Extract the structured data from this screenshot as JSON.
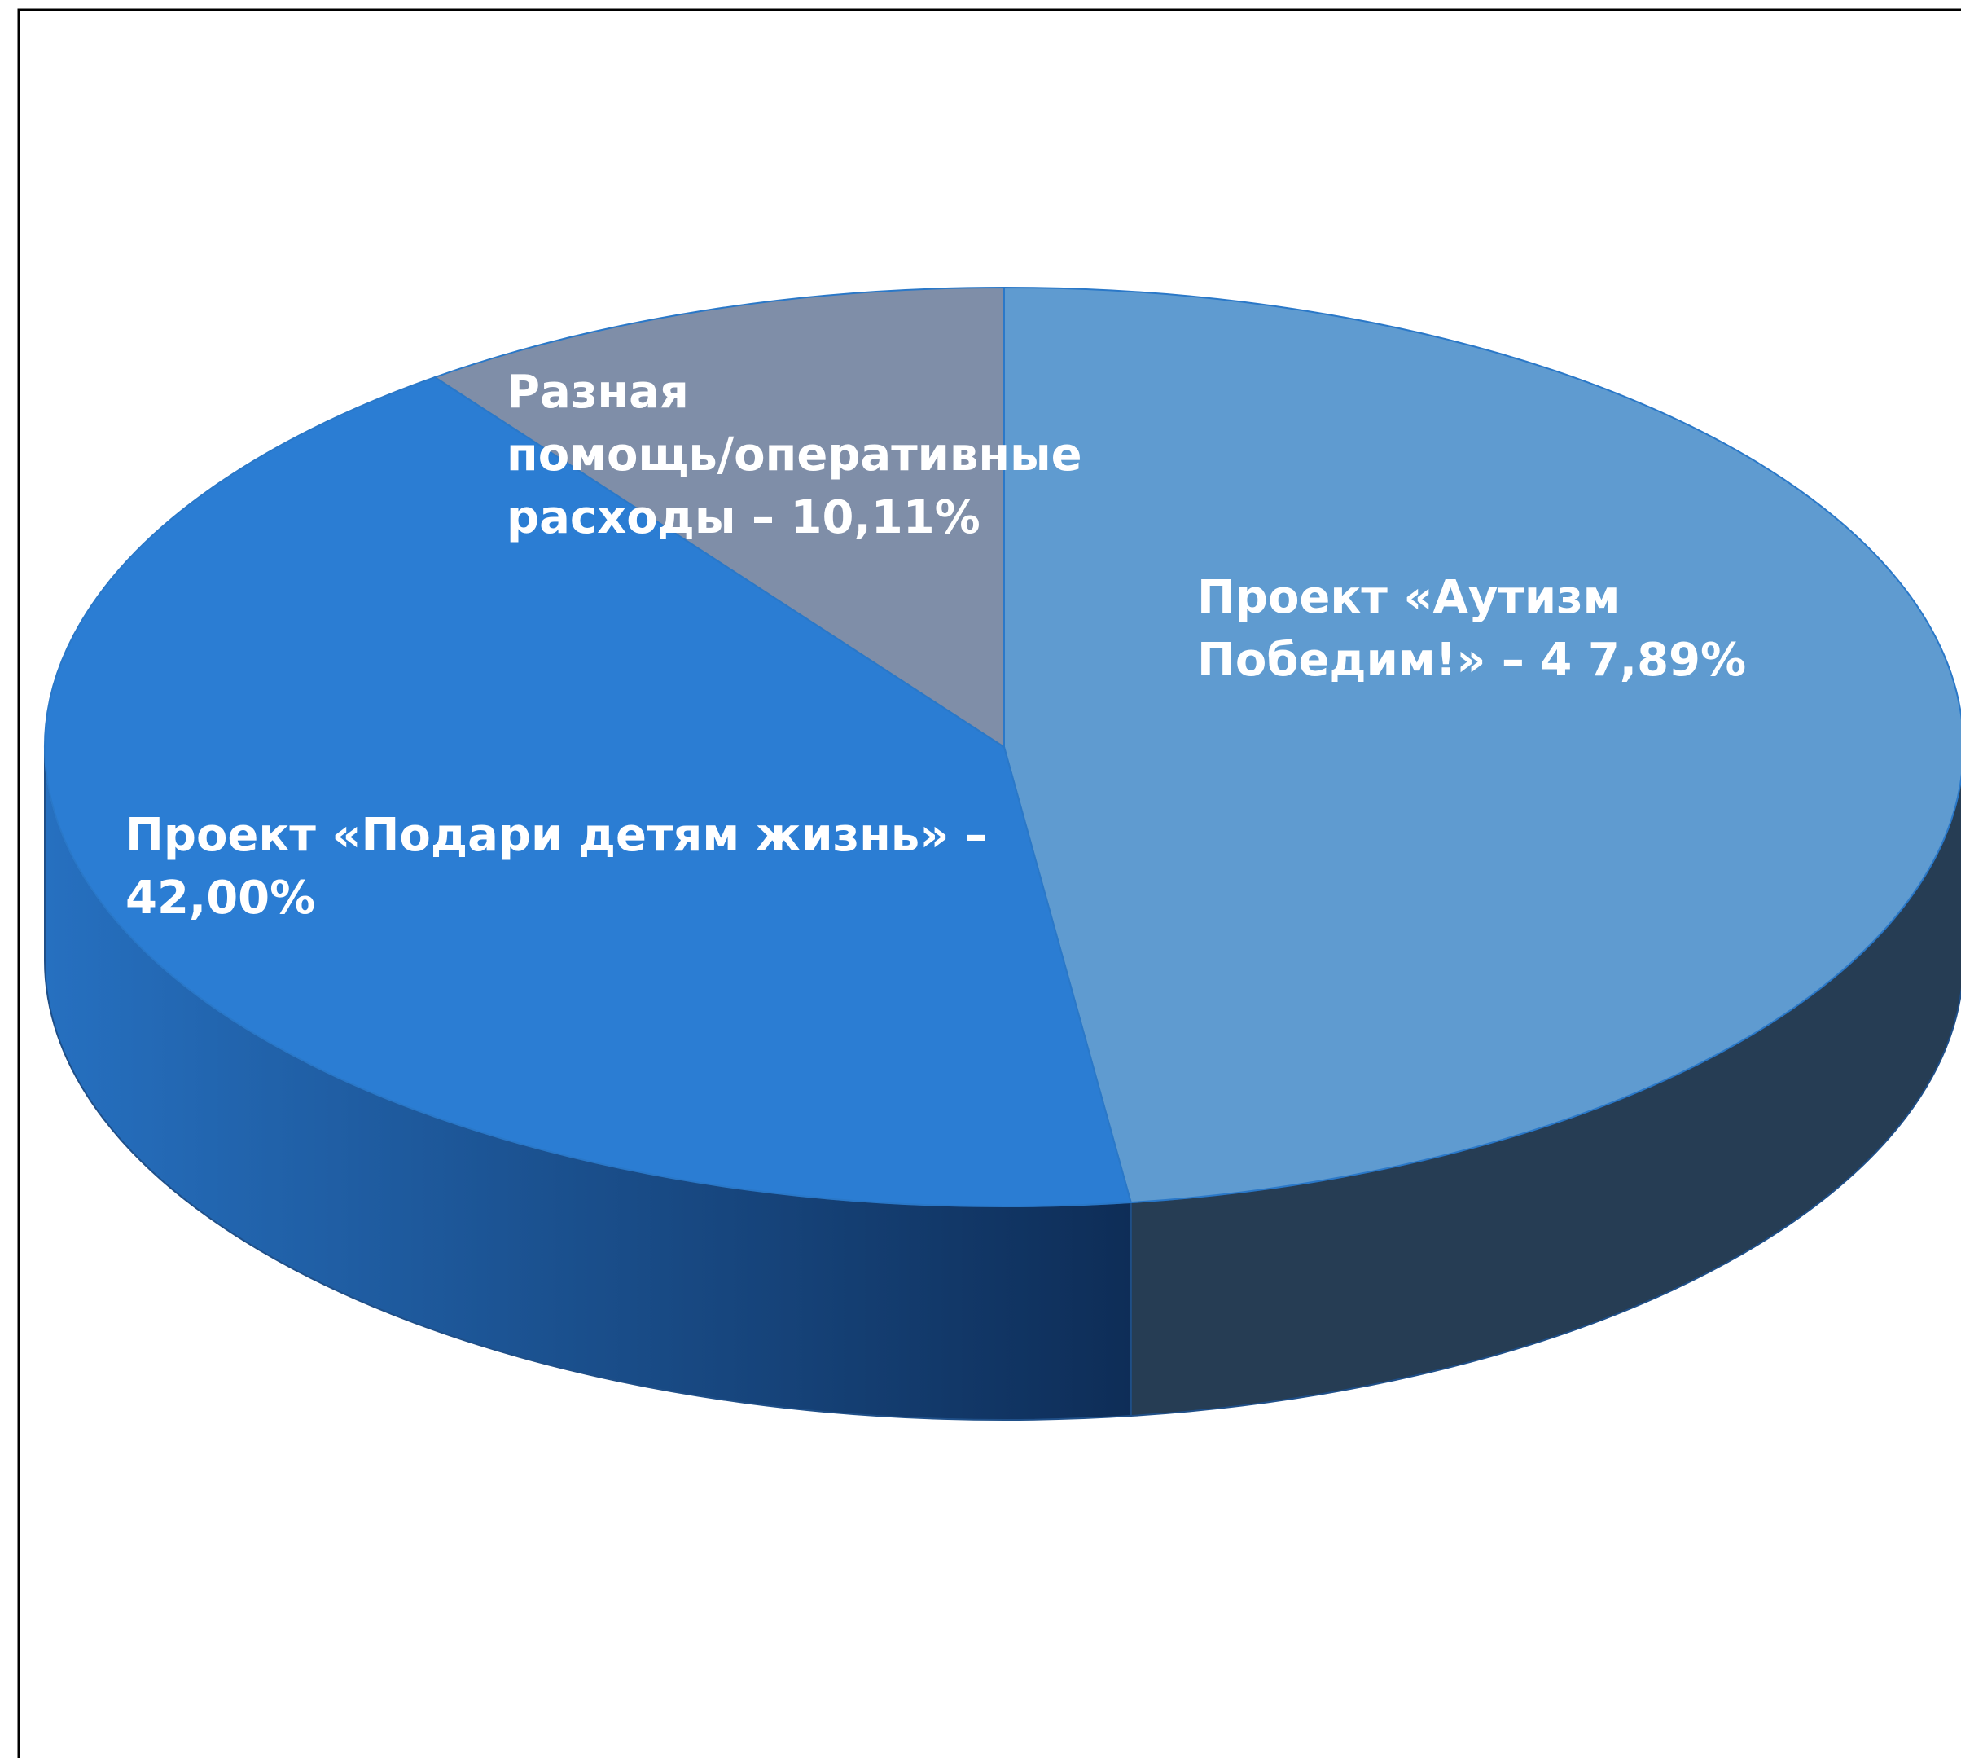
{
  "chart_data": {
    "type": "pie3d",
    "values": [
      47.89,
      42.0,
      10.11
    ],
    "value_labels": [
      [
        "Проект «Аутизм",
        "Победим!»  – 4 7,89%"
      ],
      [
        "Проект «Подари детям жизнь»  –",
        "42,00%"
      ],
      [
        "Разная",
        "помощь/оперативные",
        "расходы – 10,11%"
      ]
    ],
    "colors": [
      "#5f9bd0",
      "#2b7dd3",
      "#7f8ea8"
    ],
    "side_colors": [
      "#263d54",
      "#1d5a9e",
      "#5a6780"
    ]
  }
}
